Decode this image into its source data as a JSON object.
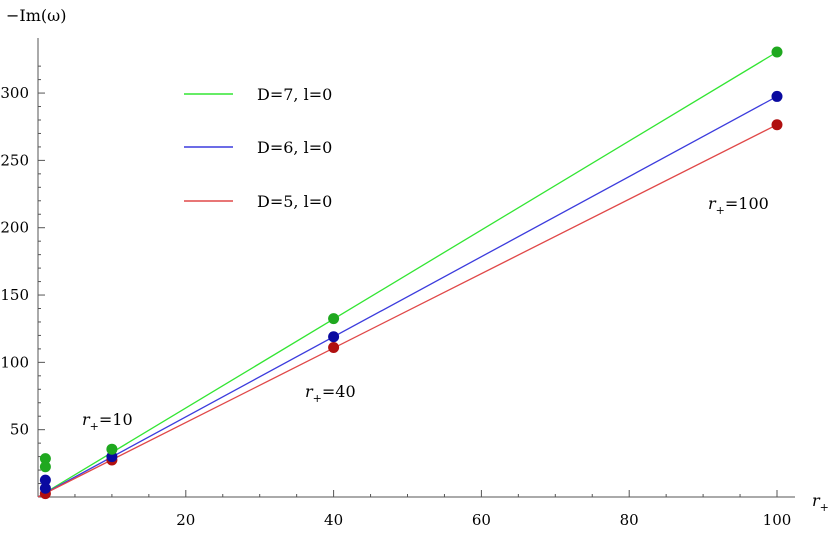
{
  "chart_data": {
    "type": "scatter",
    "title": "",
    "xlabel": "r₊",
    "ylabel": "−Im(ω)",
    "xlim": [
      0,
      100
    ],
    "ylim": [
      0,
      330
    ],
    "grid": false,
    "legend_position": "top-left",
    "x_ticks": [
      20,
      40,
      60,
      80,
      100
    ],
    "y_ticks": [
      50,
      100,
      150,
      200,
      250,
      300
    ],
    "series": [
      {
        "name": "D=7, l=0",
        "color": "#33e533",
        "point_color": "#1fa81f",
        "fit": [
          [
            0,
            0
          ],
          [
            100,
            330.5
          ]
        ],
        "points": [
          {
            "x": 1,
            "y": 28.5
          },
          {
            "x": 1,
            "y": 22.5
          },
          {
            "x": 10,
            "y": 35.5
          },
          {
            "x": 40,
            "y": 132.5
          },
          {
            "x": 100,
            "y": 330.5
          }
        ]
      },
      {
        "name": "D=6, l=0",
        "color": "#3c3cdd",
        "point_color": "#0a0aa0",
        "fit": [
          [
            0,
            0
          ],
          [
            100,
            297.5
          ]
        ],
        "points": [
          {
            "x": 1,
            "y": 12.5
          },
          {
            "x": 1,
            "y": 6.5
          },
          {
            "x": 10,
            "y": 30
          },
          {
            "x": 40,
            "y": 119
          },
          {
            "x": 100,
            "y": 297.5
          }
        ]
      },
      {
        "name": "D=5, l=0",
        "color": "#e04848",
        "point_color": "#b01010",
        "fit": [
          [
            0,
            0
          ],
          [
            100,
            276.5
          ]
        ],
        "points": [
          {
            "x": 1,
            "y": 2.5
          },
          {
            "x": 10,
            "y": 27.5
          },
          {
            "x": 40,
            "y": 111
          },
          {
            "x": 100,
            "y": 276.5
          }
        ]
      }
    ],
    "annotations": [
      {
        "base": "r",
        "sub": "+",
        "text": "=10"
      },
      {
        "base": "r",
        "sub": "+",
        "text": "=40"
      },
      {
        "base": "r",
        "sub": "+",
        "text": "=100"
      }
    ]
  }
}
